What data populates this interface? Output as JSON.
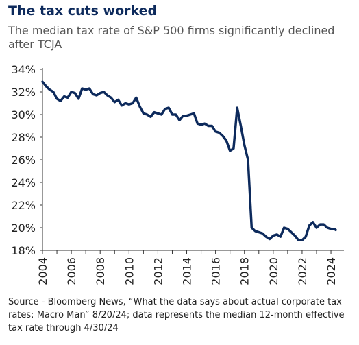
{
  "title": "The tax cuts worked",
  "subtitle": "The median tax rate of S&P 500 firms significantly declined after TCJA",
  "source": "Source - Bloomberg News, “What the data says about actual corporate tax rates: Macro Man” 8/20/24; data represents the median 12-month effective tax rate through 4/30/24",
  "colors": {
    "line": "#0d2a5c",
    "title": "#0d2a5c",
    "axis": "#333333"
  },
  "chart_data": {
    "type": "line",
    "title": "The tax cuts worked",
    "subtitle": "The median tax rate of S&P 500 firms significantly declined after TCJA",
    "xlabel": "",
    "ylabel": "",
    "xlim": [
      2004,
      2024.9
    ],
    "ylim": [
      18,
      34
    ],
    "x_ticks": [
      2004,
      2006,
      2008,
      2010,
      2012,
      2014,
      2016,
      2018,
      2020,
      2022,
      2024
    ],
    "y_ticks": [
      18,
      20,
      22,
      24,
      26,
      28,
      30,
      32,
      34
    ],
    "y_tick_labels": [
      "18%",
      "20%",
      "22%",
      "24%",
      "26%",
      "28%",
      "30%",
      "32%",
      "34%"
    ],
    "grid": false,
    "legend": "none",
    "series": [
      {
        "x": [
          2004.0,
          2004.25,
          2004.5,
          2004.75,
          2005.0,
          2005.25,
          2005.5,
          2005.75,
          2006.0,
          2006.25,
          2006.5,
          2006.75,
          2007.0,
          2007.25,
          2007.5,
          2007.75,
          2008.0,
          2008.25,
          2008.5,
          2008.75,
          2009.0,
          2009.25,
          2009.5,
          2009.75,
          2010.0,
          2010.25,
          2010.5,
          2010.75,
          2011.0,
          2011.25,
          2011.5,
          2011.75,
          2012.0,
          2012.25,
          2012.5,
          2012.75,
          2013.0,
          2013.25,
          2013.5,
          2013.75,
          2014.0,
          2014.25,
          2014.5,
          2014.75,
          2015.0,
          2015.25,
          2015.5,
          2015.75,
          2016.0,
          2016.25,
          2016.5,
          2016.75,
          2017.0,
          2017.25,
          2017.5,
          2017.75,
          2018.0,
          2018.25,
          2018.5,
          2018.75,
          2019.0,
          2019.25,
          2019.5,
          2019.75,
          2020.0,
          2020.25,
          2020.5,
          2020.75,
          2021.0,
          2021.25,
          2021.5,
          2021.75,
          2022.0,
          2022.25,
          2022.5,
          2022.75,
          2023.0,
          2023.25,
          2023.5,
          2023.75,
          2024.0,
          2024.25,
          2024.33
        ],
        "values": [
          32.9,
          32.5,
          32.2,
          32.0,
          31.4,
          31.2,
          31.6,
          31.5,
          32.0,
          31.9,
          31.4,
          32.3,
          32.2,
          32.3,
          31.8,
          31.7,
          31.9,
          32.0,
          31.7,
          31.5,
          31.1,
          31.3,
          30.8,
          31.0,
          30.9,
          31.0,
          31.5,
          30.7,
          30.1,
          30.0,
          29.8,
          30.2,
          30.1,
          30.0,
          30.5,
          30.6,
          30.0,
          30.0,
          29.5,
          29.9,
          29.9,
          30.0,
          30.1,
          29.2,
          29.1,
          29.2,
          29.0,
          29.0,
          28.5,
          28.4,
          28.1,
          27.7,
          26.8,
          27.0,
          30.6,
          29.0,
          27.3,
          26.0,
          20.0,
          19.7,
          19.6,
          19.5,
          19.2,
          19.0,
          19.3,
          19.4,
          19.2,
          20.0,
          19.9,
          19.6,
          19.3,
          18.9,
          18.9,
          19.2,
          20.2,
          20.5,
          20.0,
          20.3,
          20.3,
          20.0,
          19.9,
          19.9,
          19.8
        ]
      }
    ]
  }
}
